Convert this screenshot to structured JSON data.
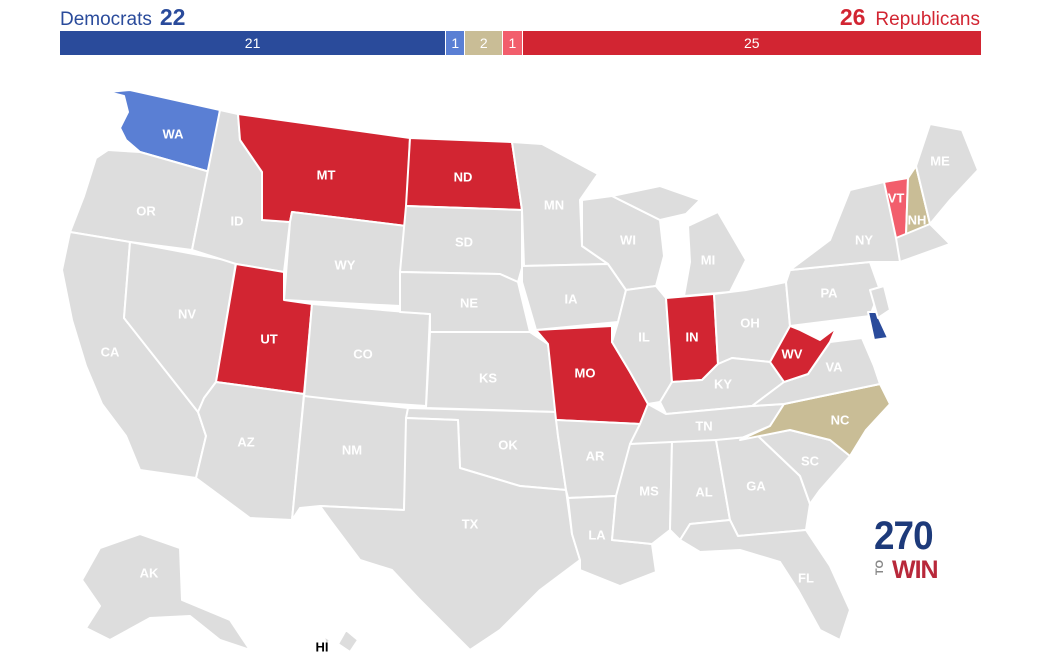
{
  "header": {
    "dem_label": "Democrats",
    "dem_total": "22",
    "rep_total": "26",
    "rep_label": "Republicans"
  },
  "bar": [
    {
      "value": "21",
      "color": "#2a4b9b",
      "weight": 21
    },
    {
      "value": "1",
      "color": "#5a7fd4",
      "weight": 1
    },
    {
      "value": "2",
      "color": "#c9bd96",
      "weight": 2
    },
    {
      "value": "1",
      "color": "#f25e6c",
      "weight": 1
    },
    {
      "value": "25",
      "color": "#d22532",
      "weight": 25
    }
  ],
  "colors": {
    "gray": "#dddddd",
    "safe_dem": "#2a4b9b",
    "lean_dem": "#5a7fd4",
    "tossup": "#c9bd96",
    "lean_rep": "#f25e6c",
    "safe_rep": "#d22532"
  },
  "states": {
    "WA": "WA",
    "OR": "OR",
    "CA": "CA",
    "NV": "NV",
    "ID": "ID",
    "MT": "MT",
    "WY": "WY",
    "UT": "UT",
    "AZ": "AZ",
    "CO": "CO",
    "NM": "NM",
    "ND": "ND",
    "SD": "SD",
    "NE": "NE",
    "KS": "KS",
    "OK": "OK",
    "TX": "TX",
    "MN": "MN",
    "IA": "IA",
    "MO": "MO",
    "AR": "AR",
    "LA": "LA",
    "WI": "WI",
    "IL": "IL",
    "MS": "MS",
    "MI": "MI",
    "IN": "IN",
    "KY": "KY",
    "TN": "TN",
    "AL": "AL",
    "OH": "OH",
    "WV": "WV",
    "VA": "VA",
    "NC": "NC",
    "SC": "SC",
    "GA": "GA",
    "FL": "FL",
    "PA": "PA",
    "NY": "NY",
    "VT": "VT",
    "NH": "NH",
    "ME": "ME",
    "AK": "AK",
    "HI": "HI"
  },
  "logo": {
    "top": "270",
    "to": "TO",
    "win": "WIN"
  }
}
